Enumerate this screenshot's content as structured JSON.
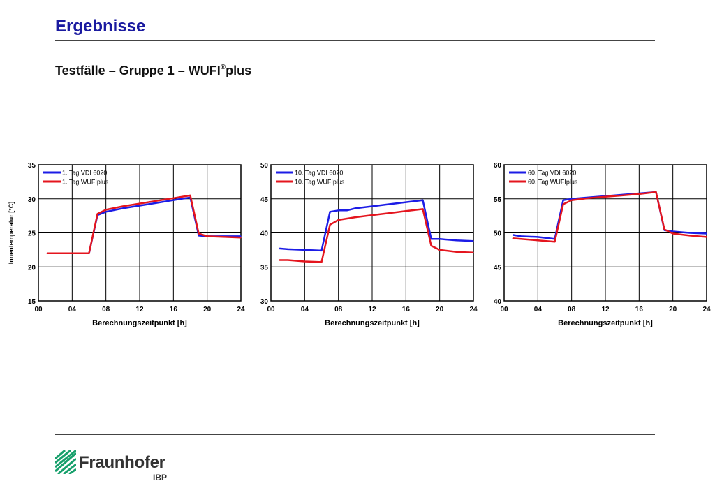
{
  "page": {
    "title": "Ergebnisse",
    "subtitle_main": "Testfälle – Gruppe 1 – WUFI",
    "subtitle_sup": "®",
    "subtitle_end": "plus"
  },
  "logo": {
    "brand": "Fraunhofer",
    "institute": "IBP"
  },
  "colors": {
    "vdi": "#1c1ce6",
    "wufi": "#e4151e",
    "title": "#1a1aa0",
    "grid": "#000000"
  },
  "chart_data": [
    {
      "type": "line",
      "xlabel": "Berechnungszeitpunkt [h]",
      "ylabel": "Innentemperatur [°C]",
      "xlim": [
        0,
        24
      ],
      "ylim": [
        15,
        35
      ],
      "xticks": [
        "00",
        "04",
        "08",
        "12",
        "16",
        "20",
        "24"
      ],
      "yticks": [
        "15",
        "20",
        "25",
        "30",
        "35"
      ],
      "grid": true,
      "legend": "top-left",
      "series": [
        {
          "name": "1. Tag VDI 6020",
          "color": "#1c1ce6",
          "x": [
            1,
            6,
            7,
            8,
            10,
            12,
            14,
            16,
            18,
            19,
            20,
            24
          ],
          "y": [
            22.0,
            22.0,
            27.6,
            28.1,
            28.6,
            29.0,
            29.4,
            29.8,
            30.2,
            24.6,
            24.5,
            24.5
          ]
        },
        {
          "name": "1. Tag WUFIplus",
          "color": "#e4151e",
          "x": [
            1,
            6,
            7,
            8,
            10,
            12,
            14,
            16,
            18,
            19,
            20,
            24
          ],
          "y": [
            22.0,
            22.0,
            27.8,
            28.4,
            28.9,
            29.3,
            29.7,
            30.1,
            30.5,
            24.9,
            24.5,
            24.3
          ]
        }
      ]
    },
    {
      "type": "line",
      "xlabel": "Berechnungszeitpunkt [h]",
      "ylabel": "",
      "xlim": [
        0,
        24
      ],
      "ylim": [
        30,
        50
      ],
      "xticks": [
        "00",
        "04",
        "08",
        "12",
        "16",
        "20",
        "24"
      ],
      "yticks": [
        "30",
        "35",
        "40",
        "45",
        "50"
      ],
      "grid": true,
      "legend": "top-left",
      "series": [
        {
          "name": "10. Tag VDI 6020",
          "color": "#1c1ce6",
          "x": [
            1,
            2,
            4,
            6,
            7,
            8,
            9,
            10,
            12,
            14,
            16,
            18,
            19,
            20,
            22,
            24
          ],
          "y": [
            37.7,
            37.6,
            37.5,
            37.4,
            43.1,
            43.3,
            43.3,
            43.6,
            43.9,
            44.2,
            44.5,
            44.8,
            39.1,
            39.1,
            38.9,
            38.8
          ]
        },
        {
          "name": "10. Tag WUFIplus",
          "color": "#e4151e",
          "x": [
            1,
            2,
            4,
            6,
            7,
            8,
            10,
            12,
            14,
            16,
            18,
            19,
            20,
            22,
            24
          ],
          "y": [
            36.0,
            36.0,
            35.8,
            35.7,
            41.2,
            41.9,
            42.3,
            42.6,
            42.9,
            43.2,
            43.5,
            38.1,
            37.5,
            37.2,
            37.1
          ]
        }
      ]
    },
    {
      "type": "line",
      "xlabel": "Berechnungszeitpunkt [h]",
      "ylabel": "",
      "xlim": [
        0,
        24
      ],
      "ylim": [
        40,
        60
      ],
      "xticks": [
        "00",
        "04",
        "08",
        "12",
        "16",
        "20",
        "24"
      ],
      "yticks": [
        "40",
        "45",
        "50",
        "55",
        "60"
      ],
      "grid": true,
      "legend": "top-left",
      "series": [
        {
          "name": "60. Tag VDI 6020",
          "color": "#1c1ce6",
          "x": [
            1,
            2,
            4,
            6,
            7,
            8,
            10,
            12,
            14,
            16,
            18,
            19,
            20,
            22,
            24
          ],
          "y": [
            49.7,
            49.5,
            49.4,
            49.1,
            54.8,
            55.0,
            55.2,
            55.4,
            55.6,
            55.8,
            56.0,
            50.4,
            50.2,
            50.0,
            49.9
          ]
        },
        {
          "name": "60. Tag WUFIplus",
          "color": "#e4151e",
          "x": [
            1,
            2,
            4,
            6,
            7,
            8,
            10,
            12,
            14,
            16,
            18,
            19,
            20,
            22,
            24
          ],
          "y": [
            49.2,
            49.1,
            48.9,
            48.7,
            54.2,
            54.8,
            55.1,
            55.3,
            55.5,
            55.7,
            56.0,
            50.5,
            49.9,
            49.6,
            49.4
          ]
        }
      ]
    }
  ]
}
